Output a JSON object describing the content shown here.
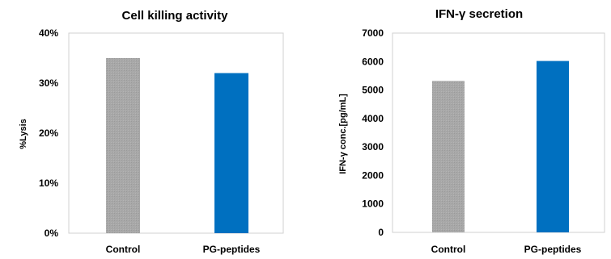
{
  "chart_data": [
    {
      "type": "bar",
      "title": "Cell killing activity",
      "xlabel": "",
      "ylabel": "%Lysis",
      "categories": [
        "Control",
        "PG-peptides"
      ],
      "values": [
        35,
        32
      ],
      "ylim": [
        0,
        40
      ],
      "yticks": [
        "0%",
        "10%",
        "20%",
        "30%",
        "40%"
      ],
      "yticks_values": [
        0,
        10,
        20,
        30,
        40
      ],
      "bar_colors": [
        "#a6a6a6",
        "#0070c0"
      ],
      "grid": false
    },
    {
      "type": "bar",
      "title": "IFN-γ secretion",
      "xlabel": "",
      "ylabel": "IFN-γ conc.[pg/mL]",
      "categories": [
        "Control",
        "PG-peptides"
      ],
      "values": [
        5320,
        6020
      ],
      "ylim": [
        0,
        7000
      ],
      "yticks": [
        "0",
        "1000",
        "2000",
        "3000",
        "4000",
        "5000",
        "6000",
        "7000"
      ],
      "yticks_values": [
        0,
        1000,
        2000,
        3000,
        4000,
        5000,
        6000,
        7000
      ],
      "bar_colors": [
        "#a6a6a6",
        "#0070c0"
      ],
      "grid": false
    }
  ]
}
